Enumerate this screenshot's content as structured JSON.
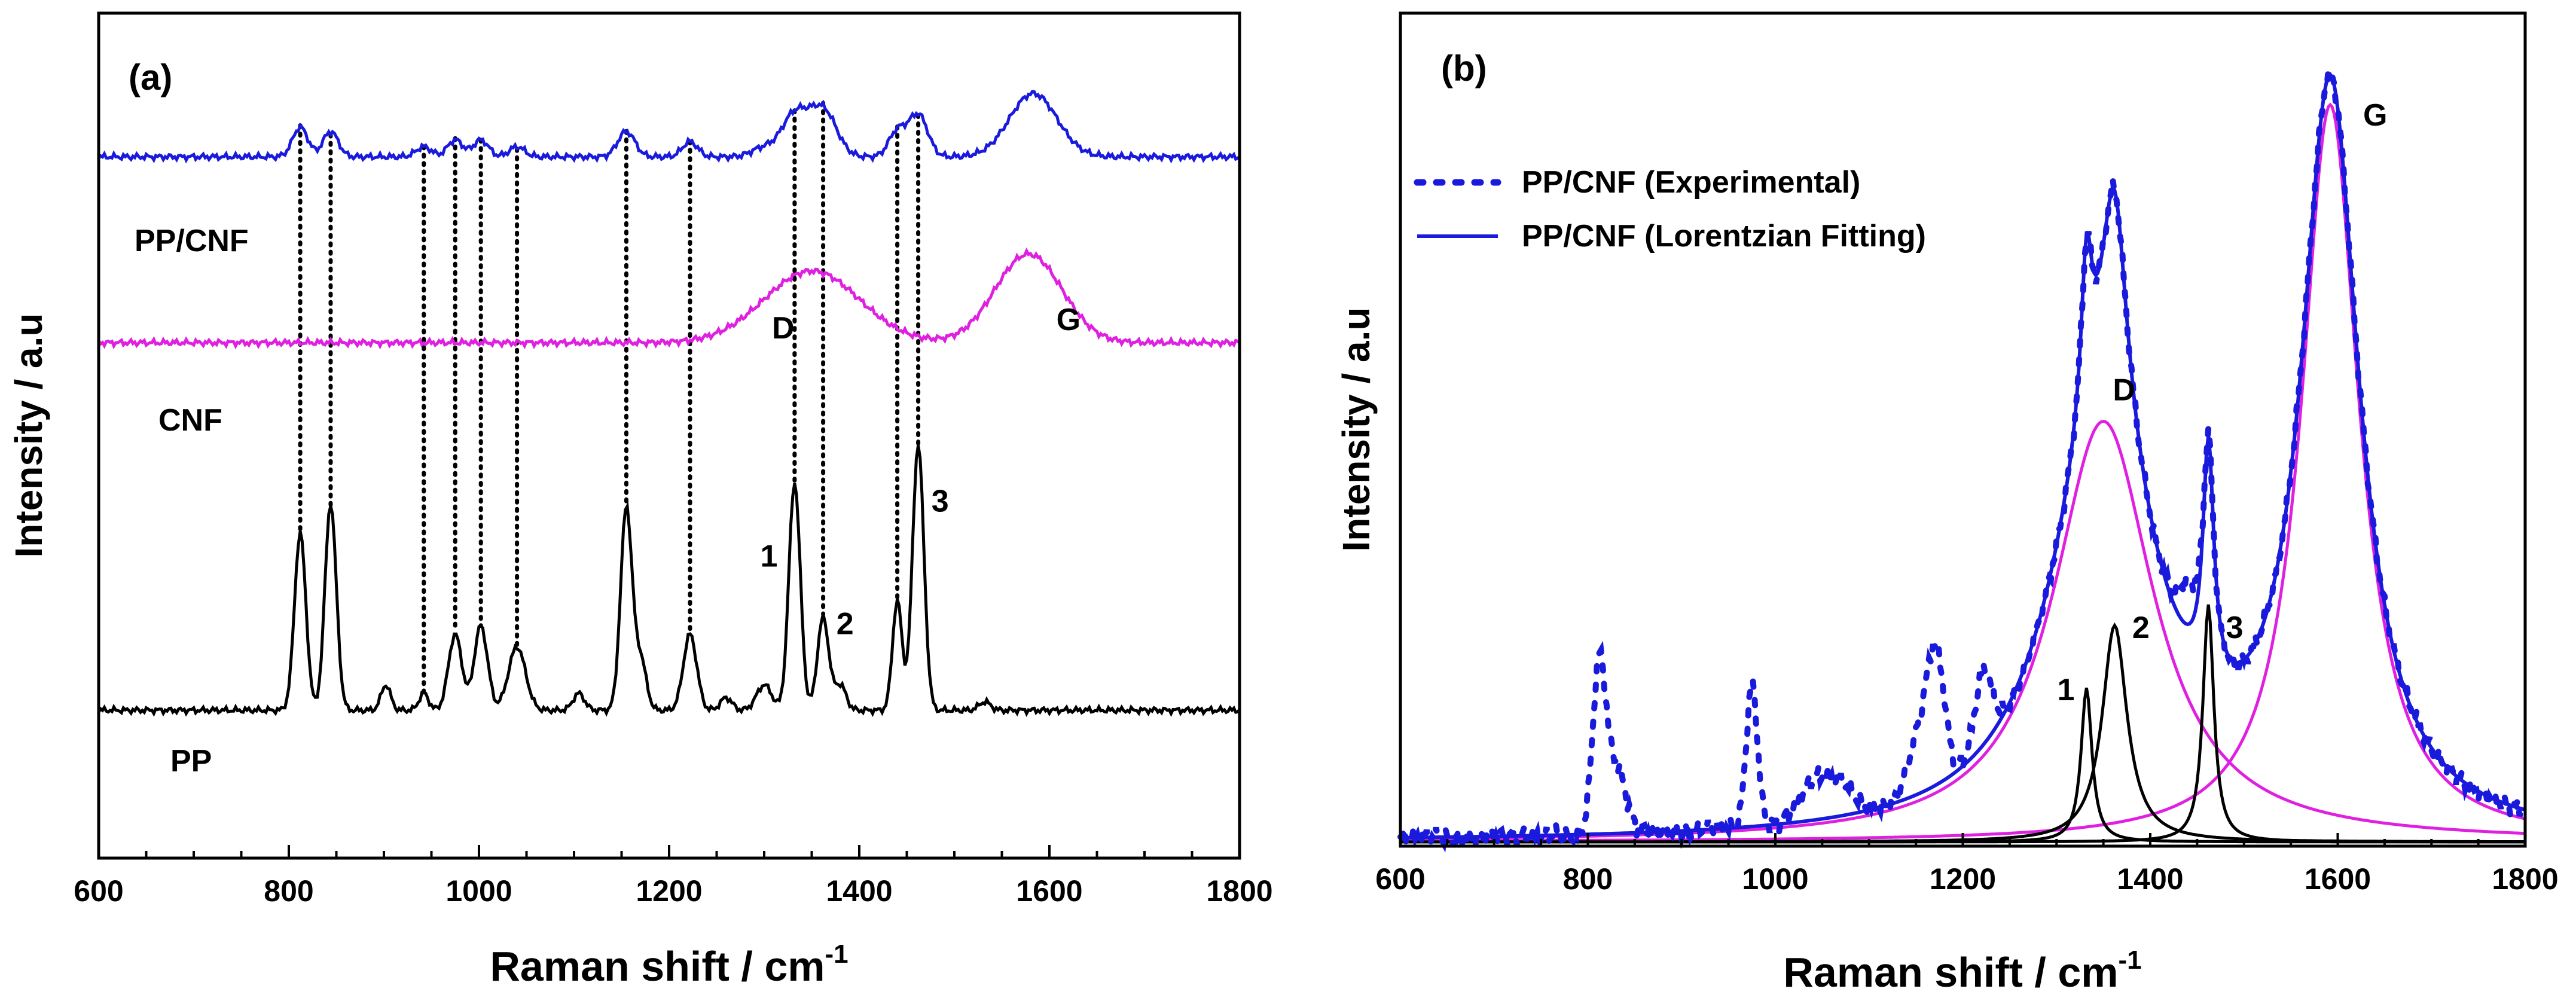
{
  "chart_data": [
    {
      "panel": "(a)",
      "type": "line",
      "xlabel": "Raman shift / cm",
      "xlabel_superscript": "-1",
      "ylabel": "Intensity / a.u",
      "xlim": [
        600,
        1800
      ],
      "xticks": [
        600,
        800,
        1000,
        1200,
        1400,
        1600,
        1800
      ],
      "ylim": [
        0,
        1
      ],
      "yticks_shown": false,
      "grid": false,
      "legend": "none",
      "curve_labels": [
        "PP/CNF",
        "CNF",
        "PP"
      ],
      "series": [
        {
          "name": "PP/CNF",
          "color": "#1a1adc",
          "offset": 0.83,
          "baseline": 0.0,
          "peaks": [
            [
              812,
              0.035,
              8
            ],
            [
              844,
              0.03,
              8
            ],
            [
              942,
              0.012,
              8
            ],
            [
              975,
              0.02,
              8
            ],
            [
              1002,
              0.02,
              8
            ],
            [
              1040,
              0.012,
              8
            ],
            [
              1155,
              0.03,
              9
            ],
            [
              1222,
              0.018,
              8
            ],
            [
              1298,
              0.01,
              12
            ],
            [
              1332,
              0.05,
              14
            ],
            [
              1362,
              0.055,
              14
            ],
            [
              1440,
              0.03,
              9
            ],
            [
              1462,
              0.05,
              10
            ],
            [
              1583,
              0.075,
              25
            ]
          ]
        },
        {
          "name": "CNF",
          "color": "#e020e0",
          "offset": 0.61,
          "baseline": 0.0,
          "peaks": [
            [
              1350,
              0.085,
              50
            ],
            [
              1578,
              0.105,
              35
            ]
          ]
        },
        {
          "name": "PP",
          "color": "#000000",
          "offset": 0.175,
          "baseline": 0.0,
          "peaks": [
            [
              812,
              0.21,
              6
            ],
            [
              844,
              0.245,
              6
            ],
            [
              902,
              0.03,
              5
            ],
            [
              942,
              0.02,
              5
            ],
            [
              975,
              0.09,
              7
            ],
            [
              1002,
              0.1,
              7
            ],
            [
              1040,
              0.075,
              9
            ],
            [
              1105,
              0.02,
              6
            ],
            [
              1155,
              0.24,
              6
            ],
            [
              1170,
              0.06,
              6
            ],
            [
              1222,
              0.09,
              7
            ],
            [
              1260,
              0.015,
              6
            ],
            [
              1300,
              0.03,
              8
            ],
            [
              1332,
              0.27,
              6
            ],
            [
              1362,
              0.11,
              6
            ],
            [
              1380,
              0.03,
              6
            ],
            [
              1440,
              0.13,
              5
            ],
            [
              1462,
              0.315,
              6
            ],
            [
              1532,
              0.01,
              6
            ]
          ]
        }
      ],
      "dotted_guides_x": [
        812,
        844,
        942,
        975,
        1002,
        1040,
        1155,
        1222,
        1332,
        1362,
        1440,
        1462
      ],
      "annotations": [
        {
          "text": "D",
          "x": 1320,
          "y": 0.615
        },
        {
          "text": "G",
          "x": 1620,
          "y": 0.625
        },
        {
          "text": "1",
          "x": 1305,
          "y": 0.345
        },
        {
          "text": "2",
          "x": 1385,
          "y": 0.265
        },
        {
          "text": "3",
          "x": 1485,
          "y": 0.41
        }
      ]
    },
    {
      "panel": "(b)",
      "type": "line",
      "xlabel": "Raman shift / cm",
      "xlabel_superscript": "-1",
      "ylabel": "Intensity / a.u",
      "xlim": [
        600,
        1800
      ],
      "xticks": [
        600,
        800,
        1000,
        1200,
        1400,
        1600,
        1800
      ],
      "ylim": [
        0,
        1
      ],
      "yticks_shown": false,
      "grid": false,
      "legend": "top-left",
      "legend_entries": [
        {
          "label": "PP/CNF (Experimental)",
          "style": "dotted",
          "color": "#1a1adc"
        },
        {
          "label": "PP/CNF (Lorentzian Fitting)",
          "style": "solid",
          "color": "#1a1adc"
        }
      ],
      "component_peaks": [
        {
          "name": "D",
          "center": 1350,
          "height": 0.505,
          "fwhm": 130,
          "color": "#e020e0"
        },
        {
          "name": "G",
          "center": 1592,
          "height": 0.885,
          "fwhm": 75,
          "color": "#e020e0"
        },
        {
          "name": "1",
          "center": 1332,
          "height": 0.185,
          "fwhm": 14,
          "color": "#000000"
        },
        {
          "name": "2",
          "center": 1362,
          "height": 0.26,
          "fwhm": 32,
          "color": "#000000"
        },
        {
          "name": "3",
          "center": 1462,
          "height": 0.285,
          "fwhm": 14,
          "color": "#000000"
        }
      ],
      "baseline": 0.005,
      "experimental_bumps": [
        [
          812,
          0.2,
          7
        ],
        [
          830,
          0.08,
          10
        ],
        [
          975,
          0.17,
          6
        ],
        [
          1040,
          0.045,
          15
        ],
        [
          1070,
          0.035,
          15
        ],
        [
          1155,
          0.075,
          12
        ],
        [
          1172,
          0.14,
          9
        ],
        [
          1222,
          0.09,
          9
        ],
        [
          1440,
          0.05,
          10
        ]
      ],
      "annotations": [
        {
          "text": "D",
          "x": 1372,
          "y": 0.535
        },
        {
          "text": "G",
          "x": 1640,
          "y": 0.865
        },
        {
          "text": "1",
          "x": 1310,
          "y": 0.175
        },
        {
          "text": "2",
          "x": 1390,
          "y": 0.25
        },
        {
          "text": "3",
          "x": 1490,
          "y": 0.25
        }
      ]
    }
  ]
}
